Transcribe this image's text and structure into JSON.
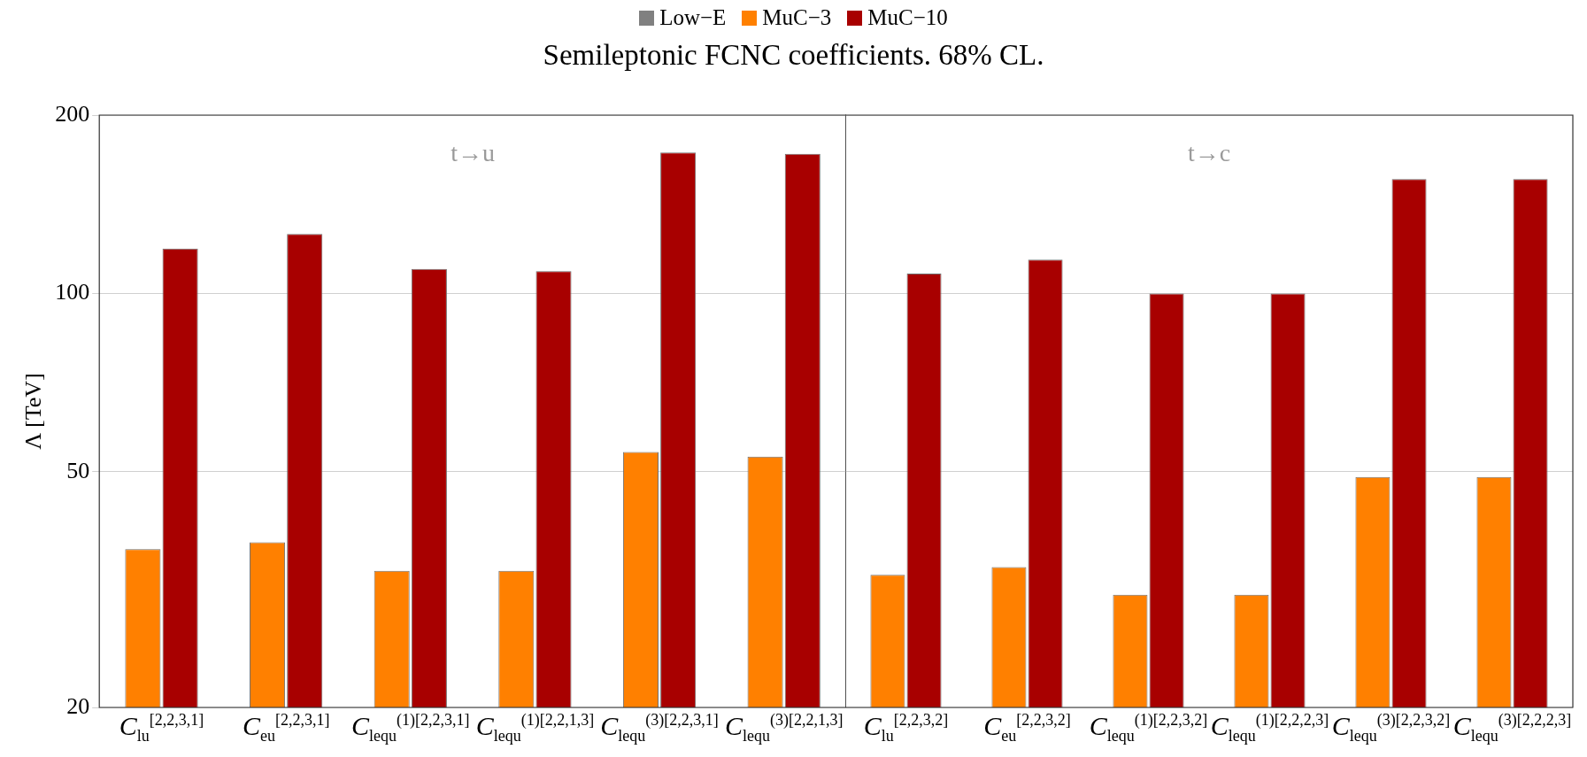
{
  "chart_data": [
    {
      "type": "bar",
      "title": "Semileptonic FCNC coefficients. 68% CL.",
      "ylabel": "Λ [TeV]",
      "categories": [
        "C$_{lu}$$^{[2,2,3,1]}$",
        "C$_{eu}$$^{[2,2,3,1]}$",
        "C$_{lequ}$$^{(1)[2,2,3,1]}$",
        "C$_{lequ}$$^{(1)[2,2,1,3]}$",
        "C$_{lequ}$$^{(3)[2,2,3,1]}$",
        "C$_{lequ}$$^{(3)[2,2,1,3]}$"
      ],
      "series": [
        {
          "name": "Low−E",
          "color": "#808080",
          "values": [
            null,
            null,
            null,
            null,
            null,
            null
          ]
        },
        {
          "name": "MuC−3",
          "color": "#ff8000",
          "values": [
            37,
            38,
            34,
            34,
            54,
            53
          ]
        },
        {
          "name": "MuC−10",
          "color": "#a80000",
          "values": [
            119,
            126,
            110,
            109,
            173,
            172
          ]
        }
      ],
      "log": "y",
      "ylim": [
        20,
        200
      ],
      "yticks": [
        20,
        50,
        100,
        200
      ],
      "grid": "y",
      "legend": "top",
      "annotations": [
        "t→u"
      ]
    },
    {
      "type": "bar",
      "categories": [
        "C$_{lu}$$^{[2,2,3,2]}$",
        "C$_{eu}$$^{[2,2,3,2]}$",
        "C$_{lequ}$$^{(1)[2,2,3,2]}$",
        "C$_{lequ}$$^{(1)[2,2,2,3]}$",
        "C$_{lequ}$$^{(3)[2,2,3,2]}$",
        "C$_{lequ}$$^{(3)[2,2,2,3]}$"
      ],
      "series": [
        {
          "color": "#ff8000",
          "values": [
            33.5,
            34.5,
            31,
            31,
            49,
            49
          ]
        },
        {
          "color": "#a80000",
          "values": [
            108,
            114,
            100,
            100,
            156,
            156
          ]
        }
      ],
      "log": "y",
      "ylim": [
        20,
        200
      ],
      "yticks": [
        20,
        50,
        100,
        200
      ],
      "grid": "y",
      "tick_labels": "x",
      "annotations": [
        "t→c"
      ]
    }
  ]
}
